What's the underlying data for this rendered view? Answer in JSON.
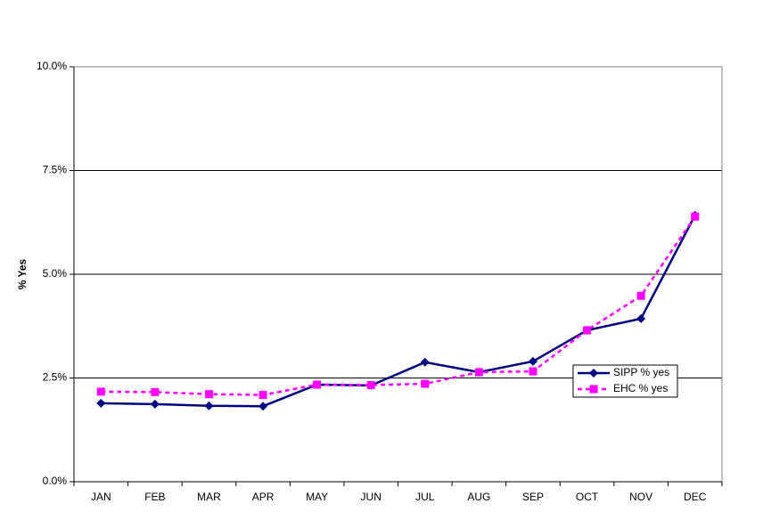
{
  "chart_data": {
    "type": "line",
    "y_label": "% Yes",
    "categories": [
      "JAN",
      "FEB",
      "MAR",
      "APR",
      "MAY",
      "JUN",
      "JUL",
      "AUG",
      "SEP",
      "OCT",
      "NOV",
      "DEC"
    ],
    "series": [
      {
        "name": "SIPP % yes",
        "color": "#000080",
        "dashed": false,
        "marker": "diamond",
        "values": [
          1.89,
          1.87,
          1.83,
          1.82,
          2.34,
          2.32,
          2.88,
          2.64,
          2.9,
          3.65,
          3.93,
          6.42
        ]
      },
      {
        "name": "EHC % yes",
        "color": "#ff00ff",
        "dashed": true,
        "marker": "square",
        "values": [
          2.17,
          2.16,
          2.11,
          2.09,
          2.34,
          2.33,
          2.36,
          2.64,
          2.66,
          3.65,
          4.48,
          6.39
        ]
      }
    ],
    "ylim": [
      0,
      10
    ],
    "yticks": [
      {
        "value": 0,
        "label": "0.0%"
      },
      {
        "value": 2.5,
        "label": "2.5%"
      },
      {
        "value": 5,
        "label": "5.0%"
      },
      {
        "value": 7.5,
        "label": "7.5%"
      },
      {
        "value": 10,
        "label": "10.0%"
      }
    ],
    "grid": true
  }
}
